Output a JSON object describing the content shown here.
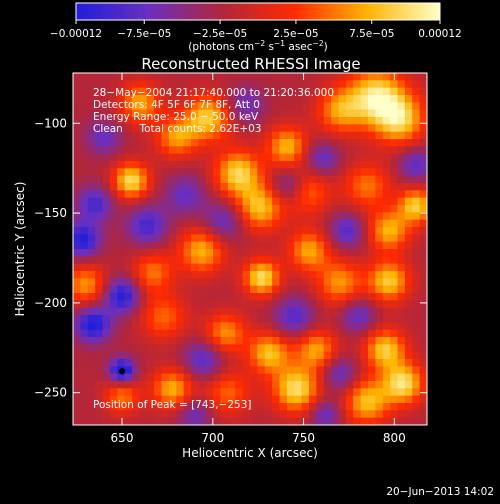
{
  "chart_data": {
    "type": "heatmap",
    "title": "Reconstructed RHESSI Image",
    "xlabel": "Heliocentric X (arcsec)",
    "ylabel": "Heliocentric Y (arcsec)",
    "xlim": [
      623,
      818
    ],
    "ylim": [
      -268,
      -72
    ],
    "x_ticks": [
      650,
      700,
      750,
      800
    ],
    "y_ticks": [
      -100,
      -150,
      -200,
      -250
    ],
    "x_tick_labels": [
      "650",
      "700",
      "750",
      "800"
    ],
    "y_tick_labels": [
      "−100",
      "−150",
      "−200",
      "−250"
    ],
    "colorbar": {
      "range": [
        -0.00012,
        0.00012
      ],
      "ticks": [
        -0.00012,
        -7.5e-05,
        -2.5e-05,
        2.5e-05,
        7.5e-05,
        0.00012
      ],
      "tick_labels": [
        "−0.00012",
        "−7.5e−05",
        "−2.5e−05",
        "2.5e−05",
        "7.5e−05",
        "0.00012"
      ],
      "units_parts": [
        "(photons cm",
        "−2",
        " s",
        "−1",
        " asec",
        "−2",
        ")"
      ],
      "colors": [
        "#1e1edc",
        "#6a2fbf",
        "#b0263c",
        "#ff2a00",
        "#ffb400",
        "#ffffc8"
      ]
    },
    "annotations": {
      "time_range": "28−May−2004 21:17:40.000 to 21:20:36.000",
      "detectors": "Detectors: 4F 5F 6F 7F 8F, Att 0",
      "energy_range": "Energy Range: 25.0 − 50.0 keV",
      "clean_counts": "Clean     Total counts: 2.62E+03",
      "peak_position": "Position of Peak = [743,−253]"
    },
    "peak": [
      743,
      -253
    ],
    "blobs": [
      {
        "x": 790,
        "y": -85,
        "v": 1.0,
        "s": 11
      },
      {
        "x": 803,
        "y": -98,
        "v": 0.9,
        "s": 10
      },
      {
        "x": 770,
        "y": -93,
        "v": 0.7,
        "s": 9
      },
      {
        "x": 697,
        "y": -97,
        "v": 0.9,
        "s": 9
      },
      {
        "x": 680,
        "y": -108,
        "v": 0.7,
        "s": 8
      },
      {
        "x": 660,
        "y": -89,
        "v": 0.75,
        "s": 8
      },
      {
        "x": 655,
        "y": -132,
        "v": 1.0,
        "s": 7
      },
      {
        "x": 714,
        "y": -128,
        "v": 0.95,
        "s": 9
      },
      {
        "x": 726,
        "y": -147,
        "v": 0.85,
        "s": 9
      },
      {
        "x": 741,
        "y": -113,
        "v": 0.8,
        "s": 8
      },
      {
        "x": 752,
        "y": -138,
        "v": 0.6,
        "s": 9
      },
      {
        "x": 785,
        "y": -135,
        "v": 0.6,
        "s": 9
      },
      {
        "x": 812,
        "y": -146,
        "v": 0.9,
        "s": 7
      },
      {
        "x": 797,
        "y": -160,
        "v": 0.8,
        "s": 8
      },
      {
        "x": 694,
        "y": -171,
        "v": 0.8,
        "s": 9
      },
      {
        "x": 727,
        "y": -186,
        "v": 1.0,
        "s": 7
      },
      {
        "x": 753,
        "y": -171,
        "v": 0.75,
        "s": 8
      },
      {
        "x": 770,
        "y": -189,
        "v": 0.7,
        "s": 9
      },
      {
        "x": 797,
        "y": -188,
        "v": 0.9,
        "s": 8
      },
      {
        "x": 630,
        "y": -190,
        "v": 0.7,
        "s": 8
      },
      {
        "x": 667,
        "y": -183,
        "v": 0.6,
        "s": 8
      },
      {
        "x": 673,
        "y": -208,
        "v": 0.55,
        "s": 9
      },
      {
        "x": 707,
        "y": -217,
        "v": 0.7,
        "s": 8
      },
      {
        "x": 731,
        "y": -228,
        "v": 0.85,
        "s": 8
      },
      {
        "x": 746,
        "y": -248,
        "v": 1.0,
        "s": 9
      },
      {
        "x": 757,
        "y": -226,
        "v": 0.75,
        "s": 8
      },
      {
        "x": 795,
        "y": -226,
        "v": 0.9,
        "s": 8
      },
      {
        "x": 805,
        "y": -245,
        "v": 1.0,
        "s": 8
      },
      {
        "x": 785,
        "y": -255,
        "v": 0.85,
        "s": 9
      },
      {
        "x": 678,
        "y": -248,
        "v": 0.8,
        "s": 8
      },
      {
        "x": 650,
        "y": -252,
        "v": 0.6,
        "s": 7
      },
      {
        "x": 708,
        "y": -250,
        "v": 0.55,
        "s": 9
      },
      {
        "x": 650,
        "y": -238,
        "v": -1.0,
        "s": 5
      },
      {
        "x": 634,
        "y": -212,
        "v": -0.85,
        "s": 7
      },
      {
        "x": 650,
        "y": -196,
        "v": -0.8,
        "s": 7
      },
      {
        "x": 628,
        "y": -165,
        "v": -0.8,
        "s": 7
      },
      {
        "x": 635,
        "y": -145,
        "v": -0.6,
        "s": 7
      },
      {
        "x": 664,
        "y": -157,
        "v": -0.6,
        "s": 8
      },
      {
        "x": 706,
        "y": -155,
        "v": -0.5,
        "s": 8
      },
      {
        "x": 685,
        "y": -140,
        "v": -0.45,
        "s": 8
      },
      {
        "x": 742,
        "y": -135,
        "v": -0.55,
        "s": 7
      },
      {
        "x": 774,
        "y": -160,
        "v": -0.55,
        "s": 7
      },
      {
        "x": 760,
        "y": -120,
        "v": -0.5,
        "s": 7
      },
      {
        "x": 812,
        "y": -123,
        "v": -0.5,
        "s": 7
      },
      {
        "x": 695,
        "y": -232,
        "v": -0.55,
        "s": 8
      },
      {
        "x": 745,
        "y": -208,
        "v": -0.55,
        "s": 8
      },
      {
        "x": 780,
        "y": -207,
        "v": -0.5,
        "s": 7
      },
      {
        "x": 770,
        "y": -240,
        "v": -0.5,
        "s": 7
      },
      {
        "x": 762,
        "y": -262,
        "v": -0.5,
        "s": 6
      },
      {
        "x": 690,
        "y": -262,
        "v": -0.45,
        "s": 7
      },
      {
        "x": 718,
        "y": -90,
        "v": -0.45,
        "s": 7
      },
      {
        "x": 640,
        "y": -108,
        "v": -0.45,
        "s": 7
      }
    ]
  },
  "footer": {
    "timestamp": "20−Jun−2013 14:02"
  }
}
